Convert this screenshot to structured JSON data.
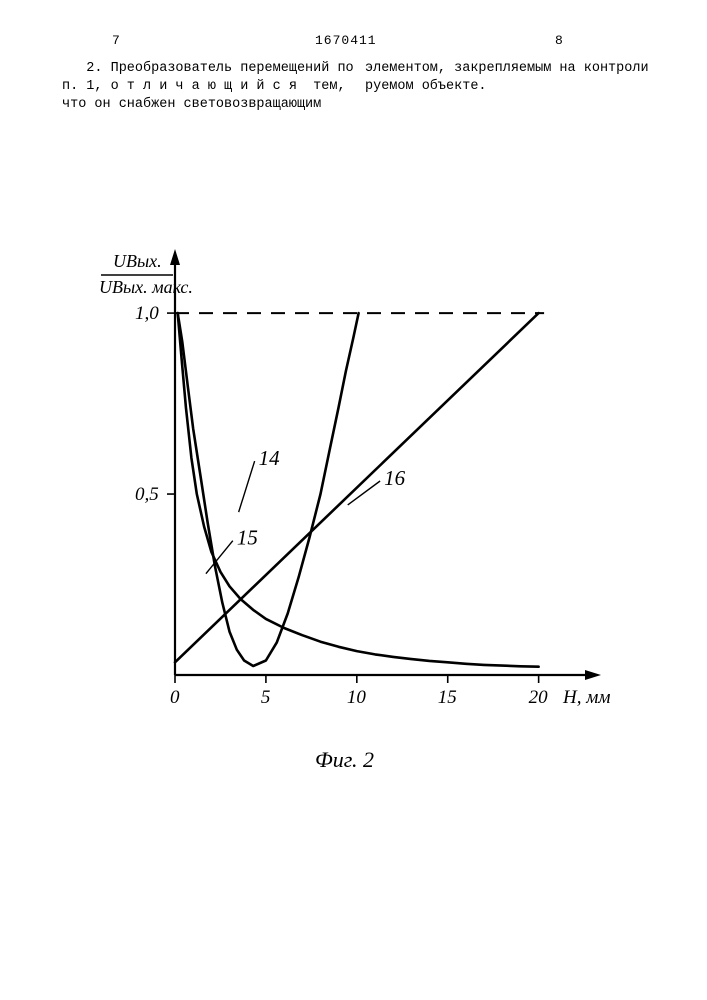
{
  "header": {
    "left_page": "7",
    "doc_number": "1670411",
    "right_page": "8"
  },
  "text": {
    "left_col": "   2. Преобразователь перемещений по\nп. 1, о т л и ч а ю щ и й с я  тем,\nчто он снабжен световозвращающим",
    "right_col": "элементом, закрепляемым на контроли\nруемом объекте."
  },
  "chart": {
    "ylabel_top": "UВых.",
    "ylabel_bot": "UВых. макс.",
    "xlabel": "Н, мм",
    "caption": "Фиг. 2",
    "xlim": [
      0,
      22
    ],
    "ylim": [
      0,
      1.05
    ],
    "xticks": [
      0,
      5,
      10,
      15,
      20
    ],
    "yticks": [
      0.5,
      1.0
    ],
    "ytick_labels": [
      "0,5",
      "1,0"
    ],
    "dashed_y": 1.0,
    "colors": {
      "axis": "#000000",
      "curve": "#000000",
      "dash": "#000000",
      "bg": "#ffffff"
    },
    "stroke": {
      "axis_w": 2.2,
      "curve_w": 2.6,
      "dash_w": 2.0
    },
    "curves": {
      "c14": {
        "label": "14",
        "label_xy": [
          4.6,
          0.58
        ],
        "leader_to": [
          3.5,
          0.45
        ],
        "pts": [
          [
            0.15,
            1.0
          ],
          [
            0.4,
            0.92
          ],
          [
            0.7,
            0.8
          ],
          [
            1.0,
            0.68
          ],
          [
            1.4,
            0.55
          ],
          [
            1.8,
            0.42
          ],
          [
            2.2,
            0.3
          ],
          [
            2.6,
            0.2
          ],
          [
            3.0,
            0.12
          ],
          [
            3.4,
            0.07
          ],
          [
            3.8,
            0.04
          ],
          [
            4.3,
            0.025
          ],
          [
            5.0,
            0.04
          ],
          [
            5.6,
            0.09
          ],
          [
            6.2,
            0.17
          ],
          [
            6.8,
            0.27
          ],
          [
            7.4,
            0.38
          ],
          [
            8.0,
            0.5
          ],
          [
            8.5,
            0.62
          ],
          [
            9.0,
            0.74
          ],
          [
            9.4,
            0.84
          ],
          [
            9.8,
            0.93
          ],
          [
            10.1,
            1.0
          ]
        ]
      },
      "c15": {
        "label": "15",
        "label_xy": [
          3.4,
          0.36
        ],
        "leader_to": [
          1.7,
          0.28
        ],
        "pts": [
          [
            0.15,
            1.0
          ],
          [
            0.35,
            0.88
          ],
          [
            0.6,
            0.74
          ],
          [
            0.9,
            0.6
          ],
          [
            1.2,
            0.5
          ],
          [
            1.6,
            0.41
          ],
          [
            2.0,
            0.34
          ],
          [
            2.5,
            0.285
          ],
          [
            3.0,
            0.245
          ],
          [
            3.6,
            0.21
          ],
          [
            4.3,
            0.18
          ],
          [
            5.0,
            0.155
          ],
          [
            6.0,
            0.13
          ],
          [
            7.0,
            0.11
          ],
          [
            8.0,
            0.092
          ],
          [
            9.0,
            0.078
          ],
          [
            10.0,
            0.066
          ],
          [
            11.0,
            0.057
          ],
          [
            12.0,
            0.05
          ],
          [
            13.0,
            0.044
          ],
          [
            14.0,
            0.039
          ],
          [
            15.0,
            0.035
          ],
          [
            16.0,
            0.031
          ],
          [
            17.0,
            0.028
          ],
          [
            18.0,
            0.026
          ],
          [
            19.0,
            0.024
          ],
          [
            20.0,
            0.023
          ]
        ]
      },
      "c16": {
        "label": "16",
        "label_xy": [
          11.5,
          0.525
        ],
        "leader_to": [
          9.5,
          0.47
        ],
        "pts": [
          [
            0.0,
            0.035
          ],
          [
            20.0,
            1.0
          ]
        ]
      }
    }
  }
}
